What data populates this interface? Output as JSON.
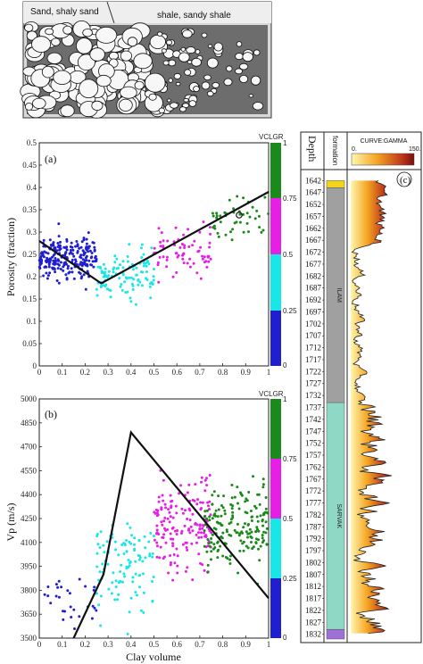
{
  "sketch": {
    "left_label": "Sand, shaly sand",
    "right_label": "shale, sandy shale"
  },
  "colorbar": {
    "title": "VCLGR",
    "ticks": [
      "0",
      "0.25",
      "0.5",
      "0.75",
      "1"
    ],
    "colors": [
      "#1f1fd0",
      "#19e6e6",
      "#e61ee6",
      "#1a8a1a"
    ]
  },
  "chart_data": [
    {
      "type": "scatter",
      "panel_label": "(a)",
      "xlabel": "",
      "ylabel": "Porosity (fraction)",
      "xlim": [
        0,
        1
      ],
      "ylim": [
        0,
        0.5
      ],
      "xticks": [
        "0",
        "0.1",
        "0.2",
        "0.3",
        "0.4",
        "0.5",
        "0.6",
        "0.7",
        "0.8",
        "0.9",
        "1"
      ],
      "yticks": [
        "0",
        "0.05",
        "0.1",
        "0.15",
        "0.2",
        "0.25",
        "0.3",
        "0.35",
        "0.4",
        "0.45",
        "0.5"
      ],
      "trend_line": [
        [
          0,
          0.28
        ],
        [
          0.27,
          0.185
        ],
        [
          1,
          0.39
        ]
      ],
      "clusters": [
        {
          "color_class": "0-0.25",
          "x_range": [
            0.0,
            0.25
          ],
          "y_center": 0.24,
          "y_spread": 0.04,
          "count": 230
        },
        {
          "color_class": "0.25-0.5",
          "x_range": [
            0.25,
            0.5
          ],
          "y_center": 0.2,
          "y_spread": 0.045,
          "count": 110
        },
        {
          "color_class": "0.5-0.75",
          "x_range": [
            0.5,
            0.75
          ],
          "y_center": 0.25,
          "y_spread": 0.05,
          "count": 70
        },
        {
          "color_class": "0.75-1",
          "x_range": [
            0.75,
            1.0
          ],
          "y_center": 0.33,
          "y_spread": 0.05,
          "count": 45
        }
      ]
    },
    {
      "type": "scatter",
      "panel_label": "(b)",
      "xlabel": "Clay volume",
      "ylabel": "Vp (m/s)",
      "xlim": [
        0,
        1
      ],
      "ylim": [
        3500,
        5000
      ],
      "xticks": [
        "0",
        "0.1",
        "0.2",
        "0.3",
        "0.4",
        "0.5",
        "0.6",
        "0.7",
        "0.8",
        "0.9",
        "1"
      ],
      "yticks": [
        "3500",
        "3650",
        "3800",
        "3950",
        "4100",
        "4250",
        "4400",
        "4550",
        "4700",
        "4850",
        "5000"
      ],
      "trend_line": [
        [
          0.15,
          3500
        ],
        [
          0.28,
          3900
        ],
        [
          0.4,
          4790
        ],
        [
          1.0,
          3750
        ]
      ],
      "clusters": [
        {
          "color_class": "0-0.25",
          "x_range": [
            0.02,
            0.25
          ],
          "y_center": 3750,
          "y_spread": 150,
          "count": 30
        },
        {
          "color_class": "0.25-0.5",
          "x_range": [
            0.25,
            0.5
          ],
          "y_center": 3950,
          "y_spread": 250,
          "count": 110
        },
        {
          "color_class": "0.5-0.75",
          "x_range": [
            0.5,
            0.75
          ],
          "y_center": 4200,
          "y_spread": 250,
          "count": 170
        },
        {
          "color_class": "0.75-1",
          "x_range": [
            0.72,
            1.0
          ],
          "y_center": 4200,
          "y_spread": 200,
          "count": 180
        }
      ]
    },
    {
      "type": "well_log",
      "panel_label": "(c)",
      "depth_header": "Depth",
      "formation_header": "formation",
      "curve_header": "CURVE:GAMMA",
      "curve_scale": [
        "0.",
        "150."
      ],
      "depth_ticks": [
        "1642",
        "1647",
        "1652",
        "1657",
        "1662",
        "1667",
        "1672",
        "1677",
        "1682",
        "1687",
        "1692",
        "1697",
        "1702",
        "1707",
        "1712",
        "1717",
        "1722",
        "1727",
        "1732",
        "1737",
        "1742",
        "1747",
        "1752",
        "1757",
        "1762",
        "1767",
        "1772",
        "1777",
        "1782",
        "1787",
        "1792",
        "1797",
        "1802",
        "1807",
        "1812",
        "1817",
        "1822",
        "1827",
        "1832"
      ],
      "formations": [
        {
          "name": "",
          "from": 1642,
          "to": 1645,
          "color": "#f2d41a"
        },
        {
          "name": "ILAM",
          "from": 1645,
          "to": 1735,
          "color": "#a0a0a0"
        },
        {
          "name": "SARVAK",
          "from": 1735,
          "to": 1830,
          "color": "#8fd8c6"
        },
        {
          "name": "",
          "from": 1830,
          "to": 1834,
          "color": "#a070d8"
        }
      ]
    }
  ]
}
